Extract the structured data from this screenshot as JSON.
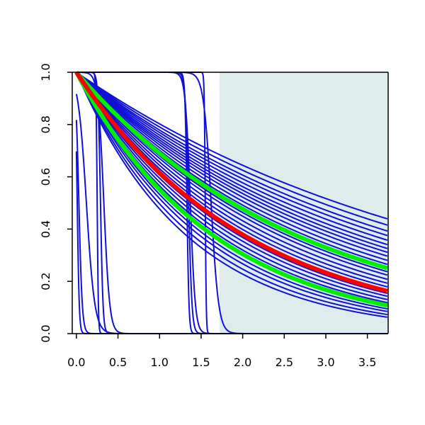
{
  "chart_data": {
    "type": "line",
    "title": "",
    "xlabel": "",
    "ylabel": "",
    "xlim": [
      -0.05,
      3.75
    ],
    "ylim": [
      0.0,
      1.0
    ],
    "x_ticks": [
      "0.0",
      "0.5",
      "1.0",
      "1.5",
      "2.0",
      "2.5",
      "3.0",
      "3.5"
    ],
    "y_ticks": [
      "0.0",
      "0.2",
      "0.4",
      "0.6",
      "0.8",
      "1.0"
    ],
    "grid": false,
    "legend": "none",
    "shaded_region": {
      "x_start": 1.72,
      "x_end": 3.75,
      "color": "#deecec"
    },
    "colors": {
      "bundle": "#1010d8",
      "band": "#00ee00",
      "center": "#ff0000"
    },
    "bundle_decay_rates": [
      0.22,
      0.235,
      0.25,
      0.262,
      0.275,
      0.288,
      0.3,
      0.312,
      0.325,
      0.34,
      0.355,
      0.37,
      0.385,
      0.4,
      0.42,
      0.44,
      0.46,
      0.48,
      0.5,
      0.52,
      0.545,
      0.57,
      0.6,
      0.63,
      0.66,
      0.7,
      0.74
    ],
    "step_curves": [
      {
        "midpoint": 0.01,
        "steepness": 0.012
      },
      {
        "midpoint": 0.03,
        "steepness": 0.02
      },
      {
        "midpoint": 0.12,
        "steepness": 0.05
      },
      {
        "midpoint": 0.25,
        "steepness": 0.007
      },
      {
        "midpoint": 0.29,
        "steepness": 0.015
      },
      {
        "midpoint": 0.33,
        "steepness": 0.035
      },
      {
        "midpoint": 1.33,
        "steepness": 0.012
      },
      {
        "midpoint": 1.35,
        "steepness": 0.02
      },
      {
        "midpoint": 1.37,
        "steepness": 0.03
      },
      {
        "midpoint": 1.55,
        "steepness": 0.006
      },
      {
        "midpoint": 1.62,
        "steepness": 0.045
      }
    ],
    "series": [
      {
        "role": "upper-band",
        "decay_rate": 0.37,
        "color": "#00ee00"
      },
      {
        "role": "lower-band",
        "decay_rate": 0.595,
        "color": "#00ee00"
      },
      {
        "role": "center",
        "decay_rate": 0.485,
        "color": "#ff0000"
      }
    ]
  }
}
